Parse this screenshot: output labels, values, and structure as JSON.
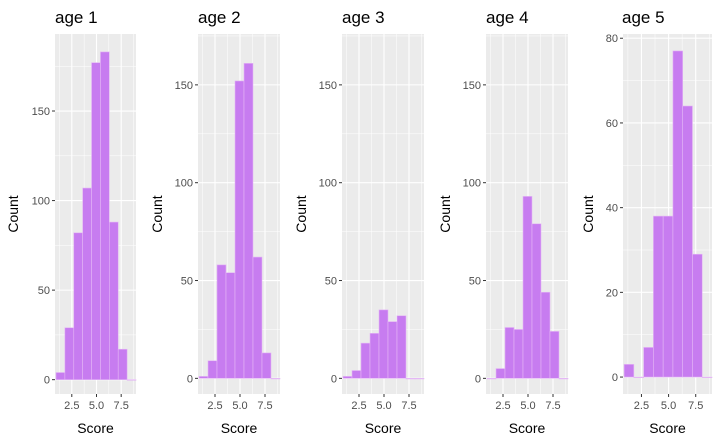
{
  "figure": {
    "bar_fill": "#c77cf0",
    "bar_stroke": "#e4b6f5",
    "panel_background": "#ebebeb",
    "gridline_color": "#ffffff",
    "tick_color": "#333333"
  },
  "chart_data": [
    {
      "type": "bar",
      "title": "age 1",
      "xlabel": "Score",
      "ylabel": "Count",
      "xlim": [
        0.8,
        9.0
      ],
      "ylim": [
        -8,
        193
      ],
      "xticks": [
        2.5,
        5.0,
        7.5
      ],
      "xtick_labels": [
        "2.5",
        "5.0",
        "7.5"
      ],
      "yticks": [
        0,
        50,
        100,
        150
      ],
      "ytick_labels": [
        "0",
        "50",
        "100",
        "150"
      ],
      "bin_width": 0.9,
      "bins": [
        1.35,
        2.25,
        3.15,
        4.05,
        4.95,
        5.85,
        6.75,
        7.65,
        8.55
      ],
      "values": [
        4,
        29,
        82,
        107,
        177,
        183,
        88,
        17,
        0
      ]
    },
    {
      "type": "bar",
      "title": "age 2",
      "xlabel": "Score",
      "ylabel": "Count",
      "xlim": [
        0.8,
        9.0
      ],
      "ylim": [
        -8,
        176
      ],
      "xticks": [
        2.5,
        5.0,
        7.5
      ],
      "xtick_labels": [
        "2.5",
        "5.0",
        "7.5"
      ],
      "yticks": [
        0,
        50,
        100,
        150
      ],
      "ytick_labels": [
        "0",
        "50",
        "100",
        "150"
      ],
      "bin_width": 0.9,
      "bins": [
        1.35,
        2.25,
        3.15,
        4.05,
        4.95,
        5.85,
        6.75,
        7.65,
        8.55
      ],
      "values": [
        1,
        9,
        58,
        54,
        152,
        161,
        62,
        13,
        0
      ]
    },
    {
      "type": "bar",
      "title": "age 3",
      "xlabel": "Score",
      "ylabel": "Count",
      "xlim": [
        0.8,
        9.0
      ],
      "ylim": [
        -8,
        176
      ],
      "xticks": [
        2.5,
        5.0,
        7.5
      ],
      "xtick_labels": [
        "2.5",
        "5.0",
        "7.5"
      ],
      "yticks": [
        0,
        50,
        100,
        150
      ],
      "ytick_labels": [
        "0",
        "50",
        "100",
        "150"
      ],
      "bin_width": 0.9,
      "bins": [
        1.35,
        2.25,
        3.15,
        4.05,
        4.95,
        5.85,
        6.75,
        7.65,
        8.55
      ],
      "values": [
        1,
        4,
        18,
        23,
        35,
        29,
        32,
        0,
        0
      ]
    },
    {
      "type": "bar",
      "title": "age 4",
      "xlabel": "Score",
      "ylabel": "Count",
      "xlim": [
        0.8,
        9.0
      ],
      "ylim": [
        -8,
        176
      ],
      "xticks": [
        2.5,
        5.0,
        7.5
      ],
      "xtick_labels": [
        "2.5",
        "5.0",
        "7.5"
      ],
      "yticks": [
        0,
        50,
        100,
        150
      ],
      "ytick_labels": [
        "0",
        "50",
        "100",
        "150"
      ],
      "bin_width": 0.9,
      "bins": [
        1.35,
        2.25,
        3.15,
        4.05,
        4.95,
        5.85,
        6.75,
        7.65,
        8.55
      ],
      "values": [
        0,
        5,
        26,
        25,
        93,
        79,
        44,
        24,
        0
      ]
    },
    {
      "type": "bar",
      "title": "age 5",
      "xlabel": "Score",
      "ylabel": "Count",
      "xlim": [
        0.8,
        9.0
      ],
      "ylim": [
        -4,
        81
      ],
      "xticks": [
        2.5,
        5.0,
        7.5
      ],
      "xtick_labels": [
        "2.5",
        "5.0",
        "7.5"
      ],
      "yticks": [
        0,
        20,
        40,
        60,
        80
      ],
      "ytick_labels": [
        "0",
        "20",
        "40",
        "60",
        "80"
      ],
      "bin_width": 0.9,
      "bins": [
        1.35,
        2.25,
        3.15,
        4.05,
        4.95,
        5.85,
        6.75,
        7.65,
        8.55
      ],
      "values": [
        3,
        0,
        7,
        38,
        38,
        77,
        64,
        29,
        0
      ]
    }
  ]
}
